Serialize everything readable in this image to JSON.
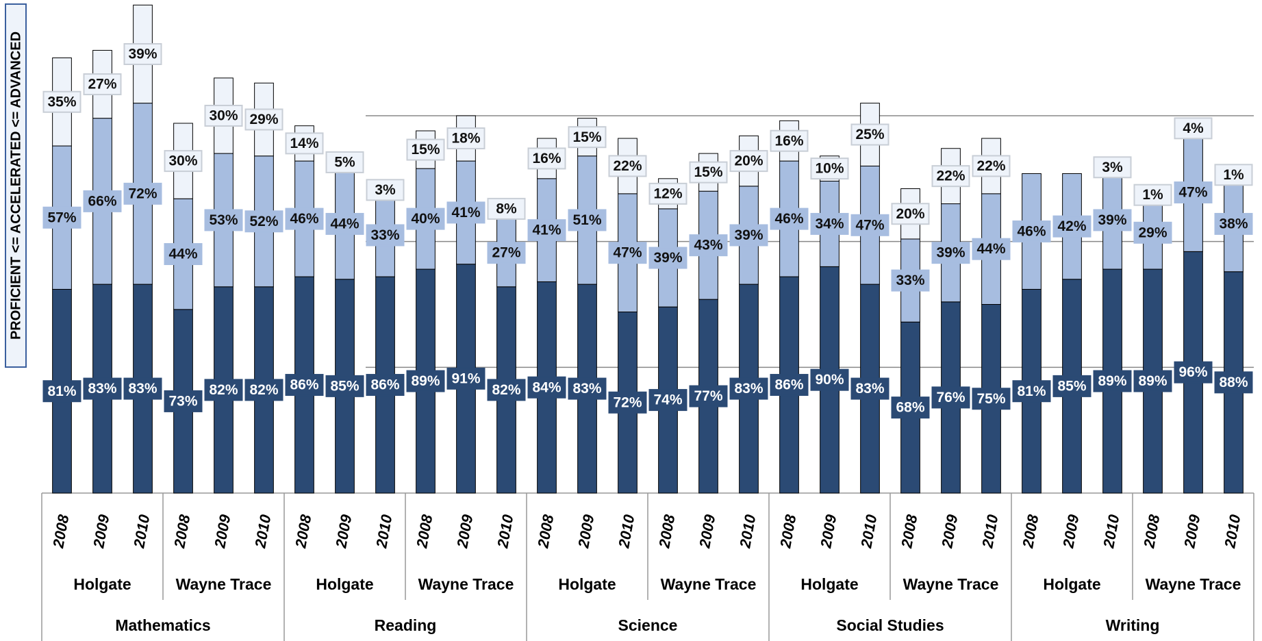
{
  "chart_data": {
    "type": "bar",
    "stacked": true,
    "y_label": "PROFICIENT <= ACCELERATED <= ADVANCED",
    "categories": [
      "2008",
      "2009",
      "2010",
      "2008",
      "2009",
      "2010",
      "2008",
      "2009",
      "2010",
      "2008",
      "2009",
      "2010",
      "2008",
      "2009",
      "2010",
      "2008",
      "2009",
      "2010",
      "2008",
      "2009",
      "2010",
      "2008",
      "2009",
      "2010",
      "2008",
      "2009",
      "2010",
      "2008",
      "2009",
      "2010"
    ],
    "schools": [
      "Holgate",
      "Wayne Trace",
      "Holgate",
      "Wayne Trace",
      "Holgate",
      "Wayne Trace",
      "Holgate",
      "Wayne Trace",
      "Holgate",
      "Wayne Trace"
    ],
    "subjects": [
      "Mathematics",
      "Reading",
      "Science",
      "Social Studies",
      "Writing"
    ],
    "ylim": [
      0,
      196
    ],
    "gridlines": [
      50,
      100,
      150
    ],
    "series": [
      {
        "color": "#2b4a74",
        "label_color": "#ffffff",
        "values": [
          81,
          83,
          83,
          73,
          82,
          82,
          86,
          85,
          86,
          89,
          91,
          82,
          84,
          83,
          72,
          74,
          77,
          83,
          86,
          90,
          83,
          68,
          76,
          75,
          81,
          85,
          89,
          89,
          96,
          88
        ],
        "value_labels": [
          "81%",
          "83%",
          "83%",
          "73%",
          "82%",
          "82%",
          "86%",
          "85%",
          "86%",
          "89%",
          "91%",
          "82%",
          "84%",
          "83%",
          "72%",
          "74%",
          "77%",
          "83%",
          "86%",
          "90%",
          "83%",
          "68%",
          "76%",
          "75%",
          "81%",
          "85%",
          "89%",
          "89%",
          "96%",
          "88%"
        ]
      },
      {
        "color": "#a7bde0",
        "label_color": "#111111",
        "values": [
          57,
          66,
          72,
          44,
          53,
          52,
          46,
          44,
          33,
          40,
          41,
          27,
          41,
          51,
          47,
          39,
          43,
          39,
          46,
          34,
          47,
          33,
          39,
          44,
          46,
          42,
          39,
          29,
          47,
          38
        ],
        "value_labels": [
          "57%",
          "66%",
          "72%",
          "44%",
          "53%",
          "52%",
          "46%",
          "44%",
          "33%",
          "40%",
          "41%",
          "27%",
          "41%",
          "51%",
          "47%",
          "39%",
          "43%",
          "39%",
          "46%",
          "34%",
          "47%",
          "33%",
          "39%",
          "44%",
          "46%",
          "42%",
          "39%",
          "29%",
          "47%",
          "38%"
        ]
      },
      {
        "color": "#eef3fa",
        "label_color": "#111111",
        "values": [
          35,
          27,
          39,
          30,
          30,
          29,
          14,
          5,
          3,
          15,
          18,
          8,
          16,
          15,
          22,
          12,
          15,
          20,
          16,
          10,
          25,
          20,
          22,
          22,
          null,
          null,
          3,
          1,
          4,
          1
        ],
        "value_labels": [
          "35%",
          "27%",
          "39%",
          "30%",
          "30%",
          "29%",
          "14%",
          "5%",
          "3%",
          "15%",
          "18%",
          "8%",
          "16%",
          "15%",
          "22%",
          "12%",
          "15%",
          "20%",
          "16%",
          "10%",
          "25%",
          "20%",
          "22%",
          "22%",
          null,
          null,
          "3%",
          "1%",
          "4%",
          "1%"
        ]
      }
    ]
  }
}
